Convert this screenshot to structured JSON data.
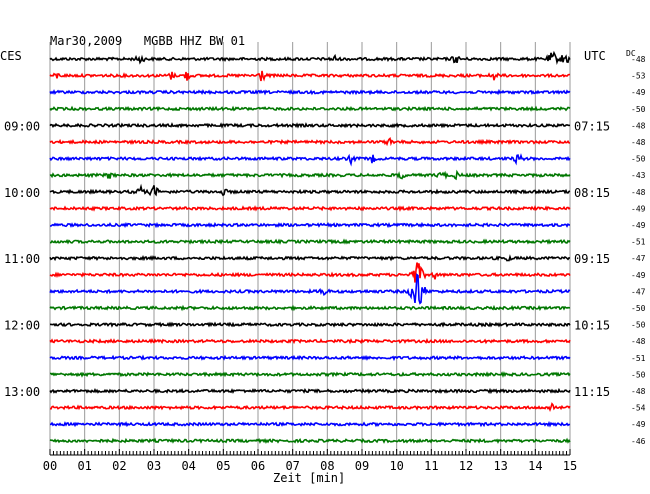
{
  "chart_data": {
    "type": "line",
    "title": "Mar30,2009   MGBB HHZ BW 01",
    "left_zone_label": "CES",
    "right_zone_label": "UTC",
    "dc_header": "DC",
    "xlabel": "Zeit [min]",
    "x_ticks": [
      "00",
      "01",
      "02",
      "03",
      "04",
      "05",
      "06",
      "07",
      "08",
      "09",
      "10",
      "11",
      "12",
      "13",
      "14",
      "15"
    ],
    "xlim": [
      0,
      15
    ],
    "left_time_labels": [
      {
        "trace": 4,
        "label": "09:00"
      },
      {
        "trace": 8,
        "label": "10:00"
      },
      {
        "trace": 12,
        "label": "11:00"
      },
      {
        "trace": 16,
        "label": "12:00"
      },
      {
        "trace": 20,
        "label": "13:00"
      }
    ],
    "right_time_labels": [
      {
        "trace": 4,
        "label": "07:15"
      },
      {
        "trace": 8,
        "label": "08:15"
      },
      {
        "trace": 12,
        "label": "09:15"
      },
      {
        "trace": 16,
        "label": "10:15"
      },
      {
        "trace": 20,
        "label": "11:15"
      }
    ],
    "dc_values": [
      "-48",
      "-53",
      "-49",
      "-50",
      "-48",
      "-48",
      "-50",
      "-43",
      "-48",
      "-49",
      "-49",
      "-51",
      "-47",
      "-49",
      "-47",
      "-50",
      "-50",
      "-48",
      "-51",
      "-50",
      "-48",
      "-54",
      "-49",
      "-46"
    ],
    "trace_colors": [
      "#000000",
      "#ff0000",
      "#0000ff",
      "#007700"
    ],
    "grid": true,
    "events": [
      {
        "trace": 0,
        "minute": 2.6,
        "amp": 6
      },
      {
        "trace": 0,
        "minute": 8.2,
        "amp": 5
      },
      {
        "trace": 0,
        "minute": 11.7,
        "amp": 6
      },
      {
        "trace": 0,
        "minute": 14.5,
        "amp": 10
      },
      {
        "trace": 0,
        "minute": 14.85,
        "amp": 9
      },
      {
        "trace": 1,
        "minute": 0.2,
        "amp": 4
      },
      {
        "trace": 1,
        "minute": 3.5,
        "amp": 5
      },
      {
        "trace": 1,
        "minute": 3.95,
        "amp": 6
      },
      {
        "trace": 1,
        "minute": 6.1,
        "amp": 8
      },
      {
        "trace": 1,
        "minute": 12.8,
        "amp": 6
      },
      {
        "trace": 5,
        "minute": 9.8,
        "amp": 5
      },
      {
        "trace": 6,
        "minute": 8.7,
        "amp": 6
      },
      {
        "trace": 6,
        "minute": 9.3,
        "amp": 5
      },
      {
        "trace": 6,
        "minute": 13.5,
        "amp": 7
      },
      {
        "trace": 7,
        "minute": 1.7,
        "amp": 5
      },
      {
        "trace": 7,
        "minute": 10.1,
        "amp": 6
      },
      {
        "trace": 7,
        "minute": 11.3,
        "amp": 6
      },
      {
        "trace": 7,
        "minute": 11.7,
        "amp": 5
      },
      {
        "trace": 8,
        "minute": 2.6,
        "amp": 7
      },
      {
        "trace": 8,
        "minute": 3.0,
        "amp": 8
      },
      {
        "trace": 8,
        "minute": 5.0,
        "amp": 5
      },
      {
        "trace": 12,
        "minute": 13.2,
        "amp": 4
      },
      {
        "trace": 13,
        "minute": 10.6,
        "amp": 18
      },
      {
        "trace": 13,
        "minute": 11.1,
        "amp": 5
      },
      {
        "trace": 14,
        "minute": 7.9,
        "amp": 6
      },
      {
        "trace": 14,
        "minute": 10.6,
        "amp": 32
      },
      {
        "trace": 21,
        "minute": 14.5,
        "amp": 6
      }
    ]
  }
}
